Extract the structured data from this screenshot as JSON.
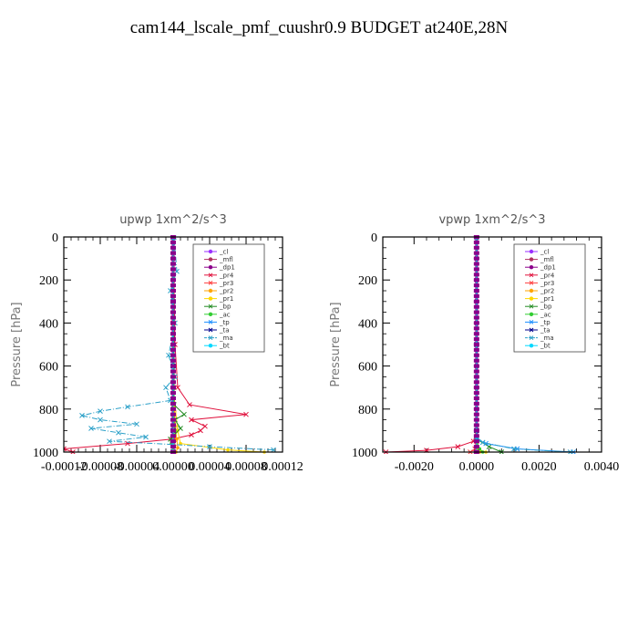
{
  "title": "cam144_lscale_pmf_cuushr0.9  BUDGET at240E,28N",
  "chart_data": [
    {
      "type": "line",
      "title": "upwp   1xm^2/s^3",
      "ylabel": "Pressure [hPa]",
      "xlabel": "",
      "xlim": [
        -0.00012,
        0.00012
      ],
      "ylim": [
        1000,
        0
      ],
      "xticks": [
        -0.00012,
        -8e-05,
        -4e-05,
        0.0,
        4e-05,
        8e-05,
        0.00012
      ],
      "xtick_labels": [
        "-0.00012",
        "-0.00008",
        "-0.00004",
        "0.00000",
        "0.00004",
        "0.00008",
        "0.00012"
      ],
      "yticks": [
        0,
        200,
        400,
        600,
        800,
        1000
      ],
      "ytick_labels": [
        "0",
        "200",
        "400",
        "600",
        "800",
        "1000"
      ],
      "legend_position": "top-right",
      "series": [
        {
          "name": "_cl",
          "color": "#9b30ff",
          "marker": "dot",
          "dash": "",
          "x": [
            0,
            0,
            0,
            0,
            0,
            0
          ],
          "y": [
            0,
            200,
            400,
            600,
            800,
            1000
          ]
        },
        {
          "name": "_mfl",
          "color": "#b03060",
          "marker": "dot",
          "dash": "",
          "x": [
            0,
            0,
            0,
            0,
            0,
            0
          ],
          "y": [
            0,
            200,
            400,
            600,
            800,
            1000
          ]
        },
        {
          "name": "_dp1",
          "color": "#8b008b",
          "marker": "dot",
          "dash": "",
          "x": [
            0,
            0,
            0,
            0,
            0,
            0,
            0,
            0,
            0,
            0,
            0,
            0
          ],
          "y": [
            0,
            100,
            200,
            300,
            400,
            500,
            600,
            700,
            800,
            900,
            950,
            1000
          ]
        },
        {
          "name": "_pr4",
          "color": "#e0103c",
          "marker": "cross",
          "dash": "",
          "x": [
            0,
            2e-06,
            5e-06,
            1.8e-05,
            8e-05,
            2e-05,
            3.5e-05,
            3e-05,
            2e-05,
            -1e-06,
            -5e-05,
            -0.00012,
            -0.00011
          ],
          "y": [
            0,
            500,
            700,
            780,
            825,
            850,
            880,
            900,
            920,
            940,
            960,
            985,
            1000
          ]
        },
        {
          "name": "_pr3",
          "color": "#ff4040",
          "marker": "cross",
          "dash": "",
          "x": [
            0,
            0,
            1e-06,
            3e-06,
            1e-06,
            0
          ],
          "y": [
            0,
            400,
            800,
            900,
            960,
            1000
          ]
        },
        {
          "name": "_pr2",
          "color": "#ffa500",
          "marker": "dot",
          "dash": "",
          "x": [
            0,
            0,
            2e-06,
            4e-06,
            5e-06,
            3e-06
          ],
          "y": [
            0,
            600,
            880,
            940,
            980,
            1000
          ]
        },
        {
          "name": "_pr1",
          "color": "#ffd700",
          "marker": "dot",
          "dash": "",
          "x": [
            0,
            0,
            5e-06,
            8e-06,
            6e-05,
            0.0001
          ],
          "y": [
            0,
            700,
            900,
            960,
            990,
            1000
          ]
        },
        {
          "name": "_bp",
          "color": "#228b22",
          "marker": "cross",
          "dash": "",
          "x": [
            0,
            1e-06,
            1.2e-05,
            2e-06,
            8e-06,
            -3e-06,
            0
          ],
          "y": [
            0,
            780,
            825,
            850,
            890,
            940,
            1000
          ]
        },
        {
          "name": "_ac",
          "color": "#32cd32",
          "marker": "dot",
          "dash": "",
          "x": [
            0,
            0,
            2e-06,
            -2e-06,
            0
          ],
          "y": [
            0,
            800,
            900,
            960,
            1000
          ]
        },
        {
          "name": "_tp",
          "color": "#1e90ff",
          "marker": "cross",
          "dash": "",
          "x": [
            0,
            0,
            0,
            0,
            0
          ],
          "y": [
            0,
            300,
            600,
            900,
            1000
          ]
        },
        {
          "name": "_ta",
          "color": "#00008b",
          "marker": "cross",
          "dash": "",
          "x": [
            0,
            0,
            0,
            0,
            0
          ],
          "y": [
            0,
            300,
            600,
            900,
            1000
          ]
        },
        {
          "name": "_ma",
          "color": "#2ca0c8",
          "marker": "cross",
          "dash": "dash",
          "x": [
            1e-06,
            4e-06,
            -3e-06,
            2e-06,
            -5e-06,
            2e-06,
            -8e-06,
            -3e-06,
            -5e-05,
            -8e-05,
            -0.0001,
            -8e-05,
            -4e-05,
            -9e-05,
            -6e-05,
            -3e-05,
            -7e-05,
            -0.0,
            4e-05,
            0.00011
          ],
          "y": [
            0,
            160,
            250,
            400,
            550,
            650,
            700,
            760,
            790,
            810,
            830,
            850,
            870,
            890,
            910,
            930,
            950,
            965,
            975,
            990
          ]
        },
        {
          "name": "_bt",
          "color": "#00d8ff",
          "marker": "dot",
          "dash": "",
          "x": [
            0,
            0,
            0,
            0,
            0
          ],
          "y": [
            0,
            300,
            600,
            900,
            1000
          ]
        }
      ]
    },
    {
      "type": "line",
      "title": "vpwp   1xm^2/s^3",
      "ylabel": "Pressure [hPa]",
      "xlabel": "",
      "xlim": [
        -0.003,
        0.004
      ],
      "ylim": [
        1000,
        0
      ],
      "xticks": [
        -0.002,
        0.0,
        0.002,
        0.004
      ],
      "xtick_labels": [
        "-0.0020",
        "0.0000",
        "0.0020",
        "0.0040"
      ],
      "yticks": [
        0,
        200,
        400,
        600,
        800,
        1000
      ],
      "ytick_labels": [
        "0",
        "200",
        "400",
        "600",
        "800",
        "1000"
      ],
      "legend_position": "top-right",
      "series": [
        {
          "name": "_cl",
          "color": "#9b30ff",
          "marker": "dot",
          "dash": "",
          "x": [
            0,
            0,
            0,
            0,
            0,
            0
          ],
          "y": [
            0,
            200,
            400,
            600,
            800,
            1000
          ]
        },
        {
          "name": "_mfl",
          "color": "#b03060",
          "marker": "dot",
          "dash": "",
          "x": [
            0,
            0,
            0,
            0,
            0,
            0
          ],
          "y": [
            0,
            200,
            400,
            600,
            800,
            1000
          ]
        },
        {
          "name": "_dp1",
          "color": "#8b008b",
          "marker": "dot",
          "dash": "",
          "x": [
            0,
            0,
            0,
            0,
            0,
            0,
            0,
            0,
            0,
            0,
            0,
            0
          ],
          "y": [
            0,
            100,
            200,
            300,
            400,
            500,
            600,
            700,
            800,
            900,
            950,
            1000
          ]
        },
        {
          "name": "_pr4",
          "color": "#e0103c",
          "marker": "cross",
          "dash": "",
          "x": [
            0,
            0,
            -0.0001,
            -0.0006,
            -0.0016,
            -0.0029
          ],
          "y": [
            0,
            900,
            950,
            975,
            992,
            1000
          ]
        },
        {
          "name": "_pr3",
          "color": "#ff4040",
          "marker": "cross",
          "dash": "",
          "x": [
            0,
            0,
            -5e-05,
            -0.0002
          ],
          "y": [
            0,
            950,
            985,
            1000
          ]
        },
        {
          "name": "_pr2",
          "color": "#ffa500",
          "marker": "dot",
          "dash": "",
          "x": [
            0,
            0,
            5e-05,
            0.0001
          ],
          "y": [
            0,
            950,
            985,
            1000
          ]
        },
        {
          "name": "_pr1",
          "color": "#ffd700",
          "marker": "dot",
          "dash": "",
          "x": [
            0,
            0,
            0.0001,
            0.0003
          ],
          "y": [
            0,
            950,
            990,
            1000
          ]
        },
        {
          "name": "_bp",
          "color": "#228b22",
          "marker": "cross",
          "dash": "",
          "x": [
            0,
            0,
            0.0004,
            0.0008
          ],
          "y": [
            0,
            940,
            975,
            1000
          ]
        },
        {
          "name": "_ac",
          "color": "#32cd32",
          "marker": "dot",
          "dash": "",
          "x": [
            0,
            0,
            0.0001,
            0.0002
          ],
          "y": [
            0,
            950,
            985,
            1000
          ]
        },
        {
          "name": "_tp",
          "color": "#1e90ff",
          "marker": "cross",
          "dash": "",
          "x": [
            0,
            0,
            0.0003,
            0.0013,
            0.0031
          ],
          "y": [
            0,
            940,
            960,
            985,
            1000
          ]
        },
        {
          "name": "_ta",
          "color": "#00008b",
          "marker": "cross",
          "dash": "",
          "x": [
            0,
            0,
            0,
            0
          ],
          "y": [
            0,
            500,
            900,
            1000
          ]
        },
        {
          "name": "_ma",
          "color": "#2ca0c8",
          "marker": "cross",
          "dash": "dash",
          "x": [
            0,
            0,
            0.0002,
            0.0012,
            0.003
          ],
          "y": [
            0,
            930,
            955,
            985,
            1000
          ]
        },
        {
          "name": "_bt",
          "color": "#00d8ff",
          "marker": "dot",
          "dash": "",
          "x": [
            0,
            0,
            0,
            0
          ],
          "y": [
            0,
            500,
            900,
            1000
          ]
        }
      ]
    }
  ]
}
